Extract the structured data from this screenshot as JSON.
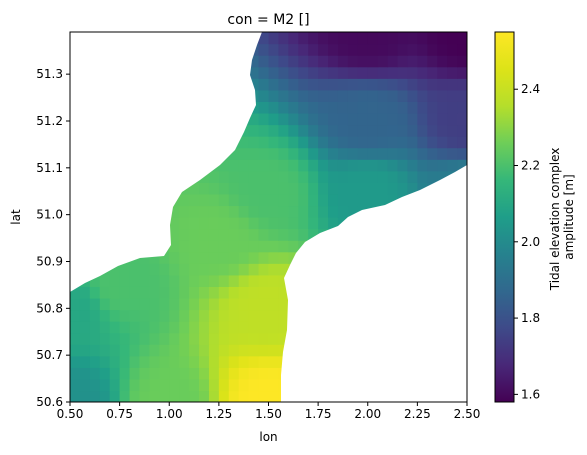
{
  "chart_data": {
    "type": "heatmap",
    "title": "con = M2 []",
    "xlabel": "lon",
    "ylabel": "lat",
    "xlim": [
      0.5,
      2.5
    ],
    "ylim": [
      50.6,
      51.39
    ],
    "x_ticks": [
      {
        "value": 0.5,
        "label": "0.50"
      },
      {
        "value": 0.75,
        "label": "0.75"
      },
      {
        "value": 1.0,
        "label": "1.00"
      },
      {
        "value": 1.25,
        "label": "1.25"
      },
      {
        "value": 1.5,
        "label": "1.50"
      },
      {
        "value": 1.75,
        "label": "1.75"
      },
      {
        "value": 2.0,
        "label": "2.00"
      },
      {
        "value": 2.25,
        "label": "2.25"
      },
      {
        "value": 2.5,
        "label": "2.50"
      }
    ],
    "y_ticks": [
      {
        "value": 50.6,
        "label": "50.6"
      },
      {
        "value": 50.7,
        "label": "50.7"
      },
      {
        "value": 50.8,
        "label": "50.8"
      },
      {
        "value": 50.9,
        "label": "50.9"
      },
      {
        "value": 51.0,
        "label": "51.0"
      },
      {
        "value": 51.1,
        "label": "51.1"
      },
      {
        "value": 51.2,
        "label": "51.2"
      },
      {
        "value": 51.3,
        "label": "51.3"
      }
    ],
    "colorbar": {
      "label_line1": "Tidal elevation complex",
      "label_line2": "amplitude [m]",
      "colormap": "viridis",
      "vmin": 1.58,
      "vmax": 2.55,
      "ticks": [
        {
          "value": 1.6,
          "label": "1.6"
        },
        {
          "value": 1.8,
          "label": "1.8"
        },
        {
          "value": 2.0,
          "label": "2.0"
        },
        {
          "value": 2.2,
          "label": "2.2"
        },
        {
          "value": 2.4,
          "label": "2.4"
        }
      ]
    },
    "field_samples": [
      {
        "lon": 0.5,
        "lat": 50.6,
        "value": 2.02
      },
      {
        "lon": 0.5,
        "lat": 50.8,
        "value": 2.1
      },
      {
        "lon": 0.75,
        "lat": 50.85,
        "value": 2.2
      },
      {
        "lon": 1.0,
        "lat": 50.6,
        "value": 2.25
      },
      {
        "lon": 1.25,
        "lat": 50.95,
        "value": 2.25
      },
      {
        "lon": 1.5,
        "lat": 50.6,
        "value": 2.55
      },
      {
        "lon": 1.5,
        "lat": 50.8,
        "value": 2.38
      },
      {
        "lon": 1.5,
        "lat": 51.05,
        "value": 2.2
      },
      {
        "lon": 2.0,
        "lat": 51.05,
        "value": 2.05
      },
      {
        "lon": 2.5,
        "lat": 51.05,
        "value": 1.95
      },
      {
        "lon": 2.0,
        "lat": 51.2,
        "value": 1.86
      },
      {
        "lon": 2.5,
        "lat": 51.2,
        "value": 1.74
      },
      {
        "lon": 2.0,
        "lat": 51.39,
        "value": 1.6
      },
      {
        "lon": 2.5,
        "lat": 51.39,
        "value": 1.58
      }
    ]
  }
}
